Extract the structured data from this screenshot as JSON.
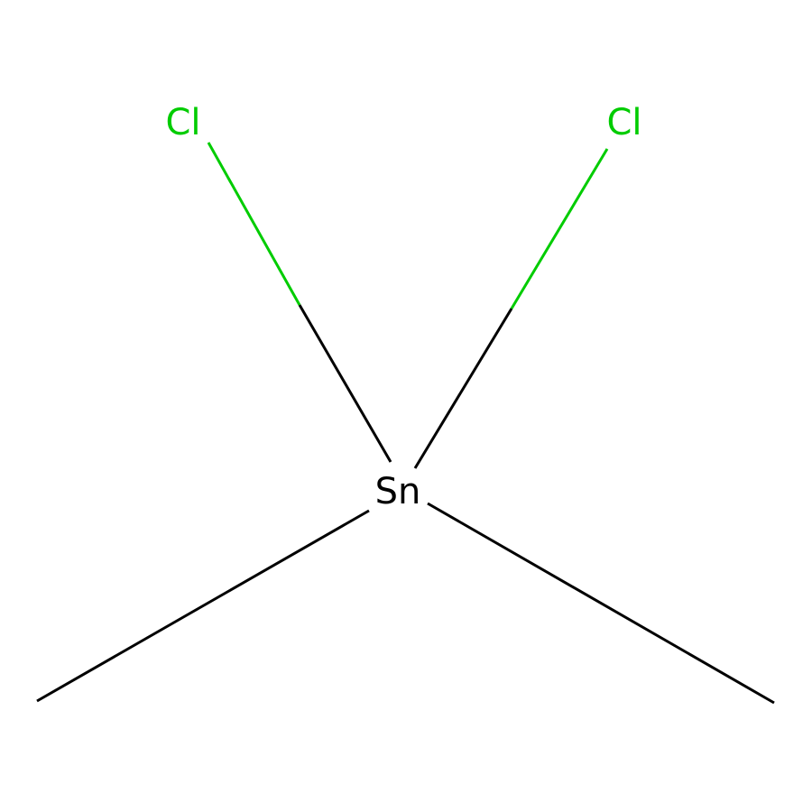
{
  "molecule": {
    "atoms": {
      "tin": {
        "symbol": "Sn",
        "color": "#000000"
      },
      "chlorine_left": {
        "symbol": "Cl",
        "color": "#00cc00"
      },
      "chlorine_right": {
        "symbol": "Cl",
        "color": "#00cc00"
      }
    },
    "colors": {
      "carbon_bond": "#000000",
      "chlorine": "#00cc00"
    }
  }
}
